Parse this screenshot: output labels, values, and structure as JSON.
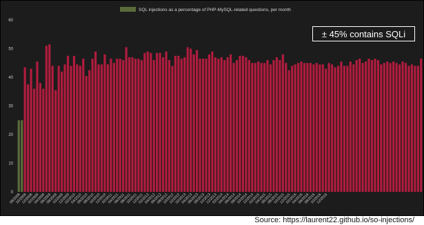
{
  "chart_data": {
    "type": "bar",
    "legend": "SQL injections as a percentage of PHP-MySQL-related questions, per month",
    "legend_color": "#5c6b3a",
    "bar_color_main": "#b01c3e",
    "bar_color_early": "#5c6b3a",
    "ylim": [
      0,
      60
    ],
    "yticks": [
      0,
      10,
      20,
      30,
      40,
      50,
      60
    ],
    "grid": false,
    "x_labels": [
      "08/2008",
      "10/2008",
      "12/2008",
      "02/2009",
      "04/2009",
      "06/2009",
      "08/2009",
      "10/2009",
      "12/2009",
      "02/2010",
      "04/2010",
      "06/2010",
      "08/2010",
      "10/2010",
      "12/2010",
      "02/2011",
      "04/2011",
      "06/2011",
      "08/2011",
      "10/2011",
      "12/2011",
      "02/2012",
      "04/2012",
      "06/2012",
      "08/2012",
      "10/2012",
      "12/2012",
      "02/2013",
      "04/2013",
      "06/2013",
      "08/2013",
      "10/2013",
      "12/2013",
      "02/2014",
      "04/2014",
      "06/2014",
      "08/2014",
      "10/2014",
      "12/2014",
      "02/2015",
      "04/2015",
      "06/2015",
      "08/2015",
      "10/2015",
      "12/2015",
      "02/2016",
      "04/2016",
      "06/2016",
      "08/2016",
      "10/2016",
      "12/2016"
    ],
    "values": [
      25,
      25,
      43.5,
      37.5,
      43,
      36,
      45.5,
      38,
      36,
      51,
      51.5,
      44,
      35.5,
      44,
      42,
      44.5,
      47.5,
      44,
      47.5,
      44.5,
      44,
      46.5,
      40.5,
      42.5,
      46.5,
      49,
      44.5,
      44.5,
      48,
      44.5,
      46.5,
      45,
      46.5,
      46.5,
      46,
      50.5,
      47,
      47,
      46.5,
      46.5,
      46,
      48.5,
      49,
      48.5,
      46,
      48.5,
      48.5,
      47,
      49,
      46,
      44,
      47.5,
      47.5,
      46.5,
      47,
      50.5,
      50,
      48,
      49.5,
      46.5,
      46.5,
      46.5,
      48,
      49,
      47,
      46.5,
      47,
      46,
      47,
      48,
      45,
      46,
      47.5,
      47.5,
      47,
      46,
      45,
      45,
      45.5,
      45,
      45,
      46,
      44.5,
      46,
      47,
      46,
      48,
      45,
      42.5,
      44,
      44.5,
      45,
      45.5,
      45,
      45,
      45,
      44.5,
      45,
      44.5,
      44.5,
      43,
      45,
      44.5,
      43.5,
      44,
      45.5,
      44,
      44,
      45.5,
      44.5,
      46,
      46.5,
      45,
      45.5,
      46.5,
      46,
      46.5,
      46,
      44.5,
      45,
      45.5,
      45,
      45.5,
      45,
      44.5,
      45.5,
      45,
      44,
      44.5,
      44,
      44,
      46.5
    ]
  },
  "annotation": "± 45% contains SQLi",
  "source": "Source: https://laurent22.github.io/so-injections/"
}
